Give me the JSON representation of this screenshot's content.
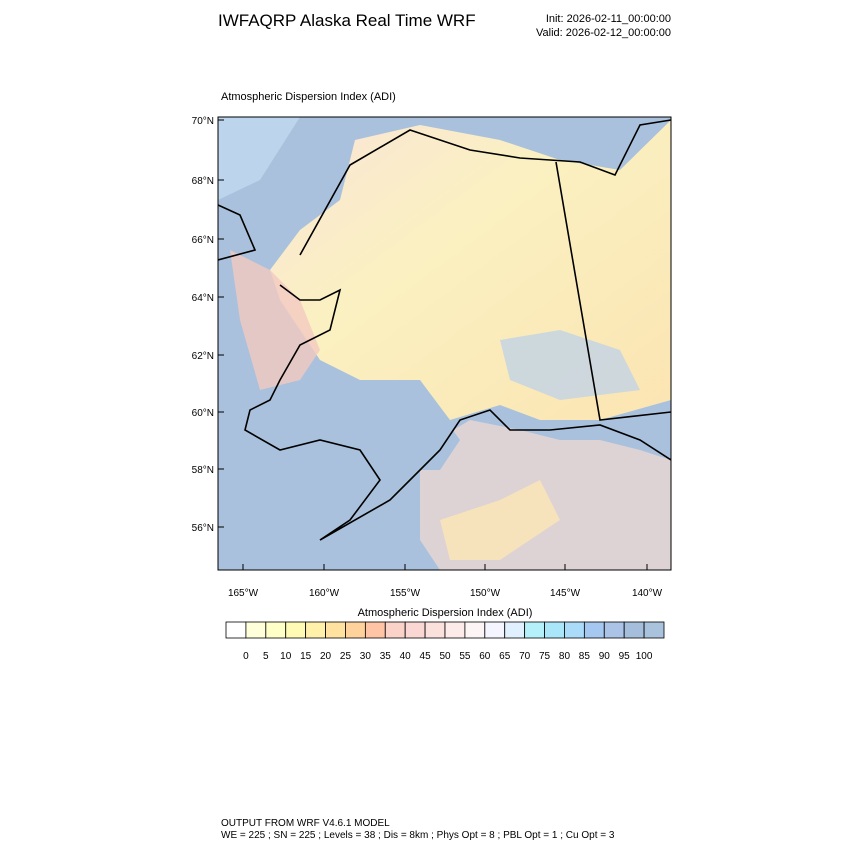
{
  "header": {
    "title": "IWFAQRP Alaska Real Time WRF",
    "init": "Init: 2026-02-11_00:00:00",
    "valid": "Valid: 2026-02-12_00:00:00"
  },
  "map": {
    "title": "Atmospheric Dispersion Index   (ADI)",
    "lat_labels": [
      "70°N",
      "68°N",
      "66°N",
      "64°N",
      "62°N",
      "60°N",
      "58°N",
      "56°N"
    ],
    "lon_labels": [
      "165°W",
      "160°W",
      "155°W",
      "150°W",
      "145°W",
      "140°W"
    ]
  },
  "colorbar": {
    "title": "Atmospheric Dispersion Index  (ADI)",
    "labels": [
      0,
      5,
      10,
      15,
      20,
      25,
      30,
      35,
      40,
      45,
      50,
      55,
      60,
      65,
      70,
      75,
      80,
      85,
      90,
      95,
      100
    ],
    "colors": [
      "#ffffff",
      "#ffffd9",
      "#ffffc8",
      "#fffab4",
      "#fff0aa",
      "#ffe1a0",
      "#ffd29b",
      "#ffc3a5",
      "#fad2c8",
      "#fad7d2",
      "#fae1dc",
      "#fcebe8",
      "#fdf5f5",
      "#f5f5ff",
      "#e1f0ff",
      "#b4f0fa",
      "#aae6fa",
      "#aadcfa",
      "#a5c8f0",
      "#aac3e6",
      "#a5bedc",
      "#aac3dc"
    ]
  },
  "footer": {
    "line1": "OUTPUT FROM WRF V4.6.1 MODEL",
    "line2": "WE = 225 ; SN = 225 ; Levels = 38 ; Dis = 8km ; Phys Opt = 8 ; PBL Opt = 1 ; Cu Opt = 3"
  }
}
